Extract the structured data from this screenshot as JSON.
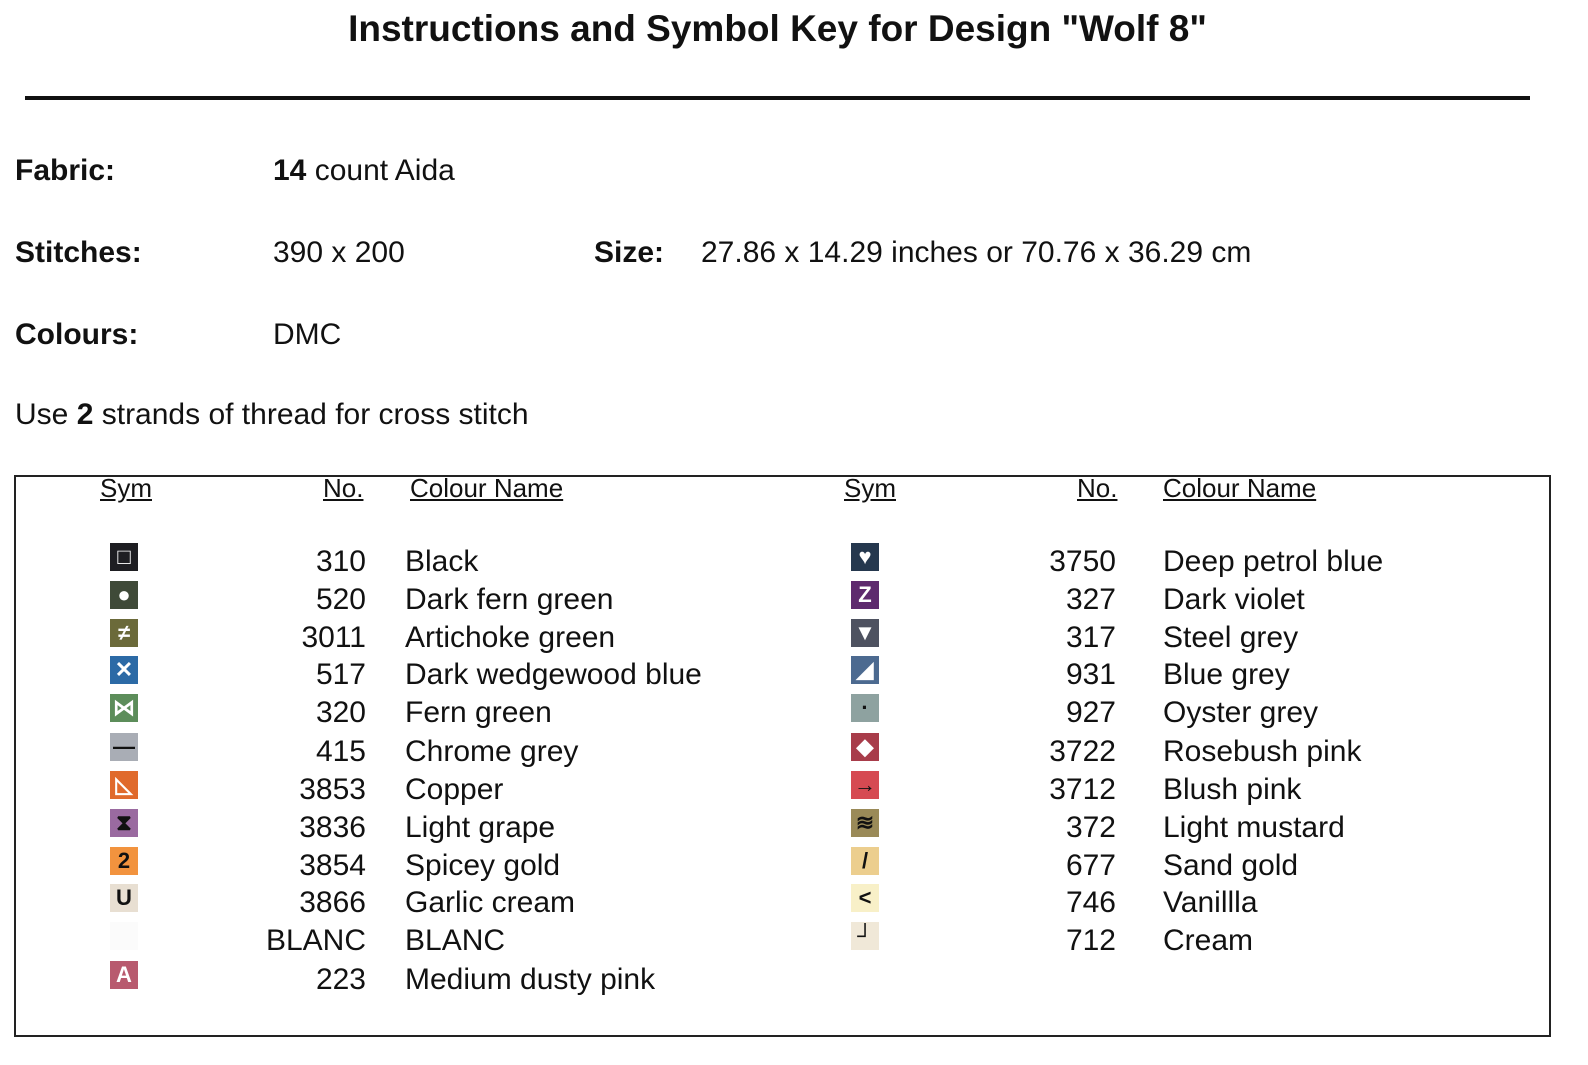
{
  "title": "Instructions and Symbol Key for Design \"Wolf 8\"",
  "fabric": {
    "label": "Fabric:",
    "count": "14",
    "rest": "count Aida"
  },
  "stitches": {
    "label": "Stitches:",
    "value": "390 x 200"
  },
  "size": {
    "label": "Size:",
    "value": "27.86 x 14.29 inches or 70.76 x 36.29 cm"
  },
  "colours": {
    "label": "Colours:",
    "value": "DMC"
  },
  "strands": {
    "pre": "Use",
    "num": "2",
    "post": "strands of thread for cross stitch"
  },
  "headers": {
    "sym": "Sym",
    "no": "No.",
    "name": "Colour Name"
  },
  "left": [
    {
      "no": "310",
      "name": "Black",
      "bg": "#1e1e22",
      "glyph": "□",
      "fg": "#fff"
    },
    {
      "no": "520",
      "name": "Dark fern green",
      "bg": "#3f4a38",
      "glyph": "●",
      "fg": "#fff"
    },
    {
      "no": "3011",
      "name": "Artichoke green",
      "bg": "#6b6a3a",
      "glyph": "≠",
      "fg": "#fff"
    },
    {
      "no": "517",
      "name": "Dark wedgewood blue",
      "bg": "#2c6aa6",
      "glyph": "✕",
      "fg": "#fff"
    },
    {
      "no": "320",
      "name": "Fern green",
      "bg": "#5c8d5a",
      "glyph": "⋈",
      "fg": "#fff"
    },
    {
      "no": "415",
      "name": "Chrome grey",
      "bg": "#a9adb5",
      "glyph": "—",
      "fg": "#111"
    },
    {
      "no": "3853",
      "name": "Copper",
      "bg": "#e06a2c",
      "glyph": "◺",
      "fg": "#fff"
    },
    {
      "no": "3836",
      "name": "Light grape",
      "bg": "#9a6aa0",
      "glyph": "⧗",
      "fg": "#111"
    },
    {
      "no": "3854",
      "name": "Spicey gold",
      "bg": "#f2933e",
      "glyph": "2",
      "fg": "#111"
    },
    {
      "no": "3866",
      "name": "Garlic cream",
      "bg": "#e8dfd2",
      "glyph": "U",
      "fg": "#111"
    },
    {
      "no": "BLANC",
      "name": "BLANC",
      "bg": "#fbfbfb",
      "glyph": "",
      "fg": "#111"
    },
    {
      "no": "223",
      "name": "Medium dusty pink",
      "bg": "#b85a6e",
      "glyph": "A",
      "fg": "#fff"
    }
  ],
  "right": [
    {
      "no": "3750",
      "name": "Deep petrol blue",
      "bg": "#25384e",
      "glyph": "♥",
      "fg": "#fff"
    },
    {
      "no": "327",
      "name": "Dark violet",
      "bg": "#5e2a6e",
      "glyph": "Z",
      "fg": "#fff"
    },
    {
      "no": "317",
      "name": "Steel grey",
      "bg": "#4e5260",
      "glyph": "▼",
      "fg": "#fff"
    },
    {
      "no": "931",
      "name": "Blue grey",
      "bg": "#4c6a90",
      "glyph": "◢",
      "fg": "#fff"
    },
    {
      "no": "927",
      "name": "Oyster grey",
      "bg": "#8ea2a0",
      "glyph": "·",
      "fg": "#111"
    },
    {
      "no": "3722",
      "name": "Rosebush pink",
      "bg": "#a83c4a",
      "glyph": "◆",
      "fg": "#fff"
    },
    {
      "no": "3712",
      "name": "Blush pink",
      "bg": "#d64a52",
      "glyph": "→",
      "fg": "#111"
    },
    {
      "no": "372",
      "name": "Light mustard",
      "bg": "#9a8a58",
      "glyph": "≋",
      "fg": "#111"
    },
    {
      "no": "677",
      "name": "Sand gold",
      "bg": "#ecce8e",
      "glyph": "/",
      "fg": "#111"
    },
    {
      "no": "746",
      "name": "Vanillla",
      "bg": "#f8f0c8",
      "glyph": "<",
      "fg": "#111"
    },
    {
      "no": "712",
      "name": "Cream",
      "bg": "#f0e8d8",
      "glyph": "┘",
      "fg": "#111"
    }
  ]
}
